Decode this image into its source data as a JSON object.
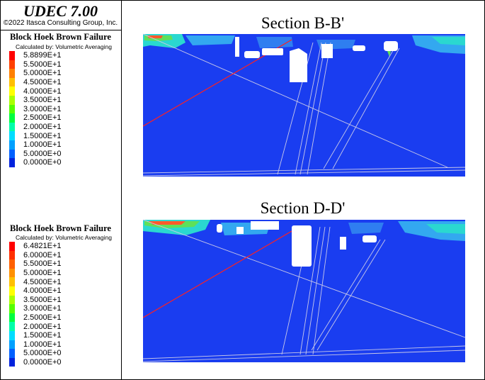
{
  "header": {
    "app_title": "UDEC 7.00",
    "copyright": "©2022 Itasca Consulting Group, Inc."
  },
  "legends": [
    {
      "title": "Block Hoek Brown Failure",
      "subtitle": "Calculated by:  Volumetric Averaging",
      "entries": [
        {
          "value": "5.8899E+1",
          "color": "#ff0000"
        },
        {
          "value": "5.5000E+1",
          "color": "#ff4000"
        },
        {
          "value": "5.0000E+1",
          "color": "#ff8000"
        },
        {
          "value": "4.5000E+1",
          "color": "#ffbf00"
        },
        {
          "value": "4.0000E+1",
          "color": "#ffff00"
        },
        {
          "value": "3.5000E+1",
          "color": "#aaff00"
        },
        {
          "value": "3.0000E+1",
          "color": "#55ff00"
        },
        {
          "value": "2.5000E+1",
          "color": "#00ff40"
        },
        {
          "value": "2.0000E+1",
          "color": "#00ffaa"
        },
        {
          "value": "1.5000E+1",
          "color": "#00ddff"
        },
        {
          "value": "1.0000E+1",
          "color": "#00a0ff"
        },
        {
          "value": "5.0000E+0",
          "color": "#0060ff"
        },
        {
          "value": "0.0000E+0",
          "color": "#0022dd"
        }
      ]
    },
    {
      "title": "Block Hoek Brown Failure",
      "subtitle": "Calculated by:  Volumetric Averaging",
      "entries": [
        {
          "value": "6.4821E+1",
          "color": "#ff0000"
        },
        {
          "value": "6.0000E+1",
          "color": "#ff3000"
        },
        {
          "value": "5.5000E+1",
          "color": "#ff6000"
        },
        {
          "value": "5.0000E+1",
          "color": "#ff9000"
        },
        {
          "value": "4.5000E+1",
          "color": "#ffc000"
        },
        {
          "value": "4.0000E+1",
          "color": "#ffff00"
        },
        {
          "value": "3.5000E+1",
          "color": "#aaff00"
        },
        {
          "value": "3.0000E+1",
          "color": "#55ff00"
        },
        {
          "value": "2.5000E+1",
          "color": "#00ff40"
        },
        {
          "value": "2.0000E+1",
          "color": "#00ffaa"
        },
        {
          "value": "1.5000E+1",
          "color": "#00ddff"
        },
        {
          "value": "1.0000E+1",
          "color": "#00a0ff"
        },
        {
          "value": "5.0000E+0",
          "color": "#0060ff"
        },
        {
          "value": "0.0000E+0",
          "color": "#0022dd"
        }
      ]
    }
  ],
  "sections": [
    {
      "title": "Section B-B'"
    },
    {
      "title": "Section D-D'"
    }
  ],
  "colors": {
    "rock_mass": "#1a3df0",
    "joint_lines": "#c8c8e8",
    "fault_line": "#ff2020",
    "openings": "#ffffff"
  }
}
